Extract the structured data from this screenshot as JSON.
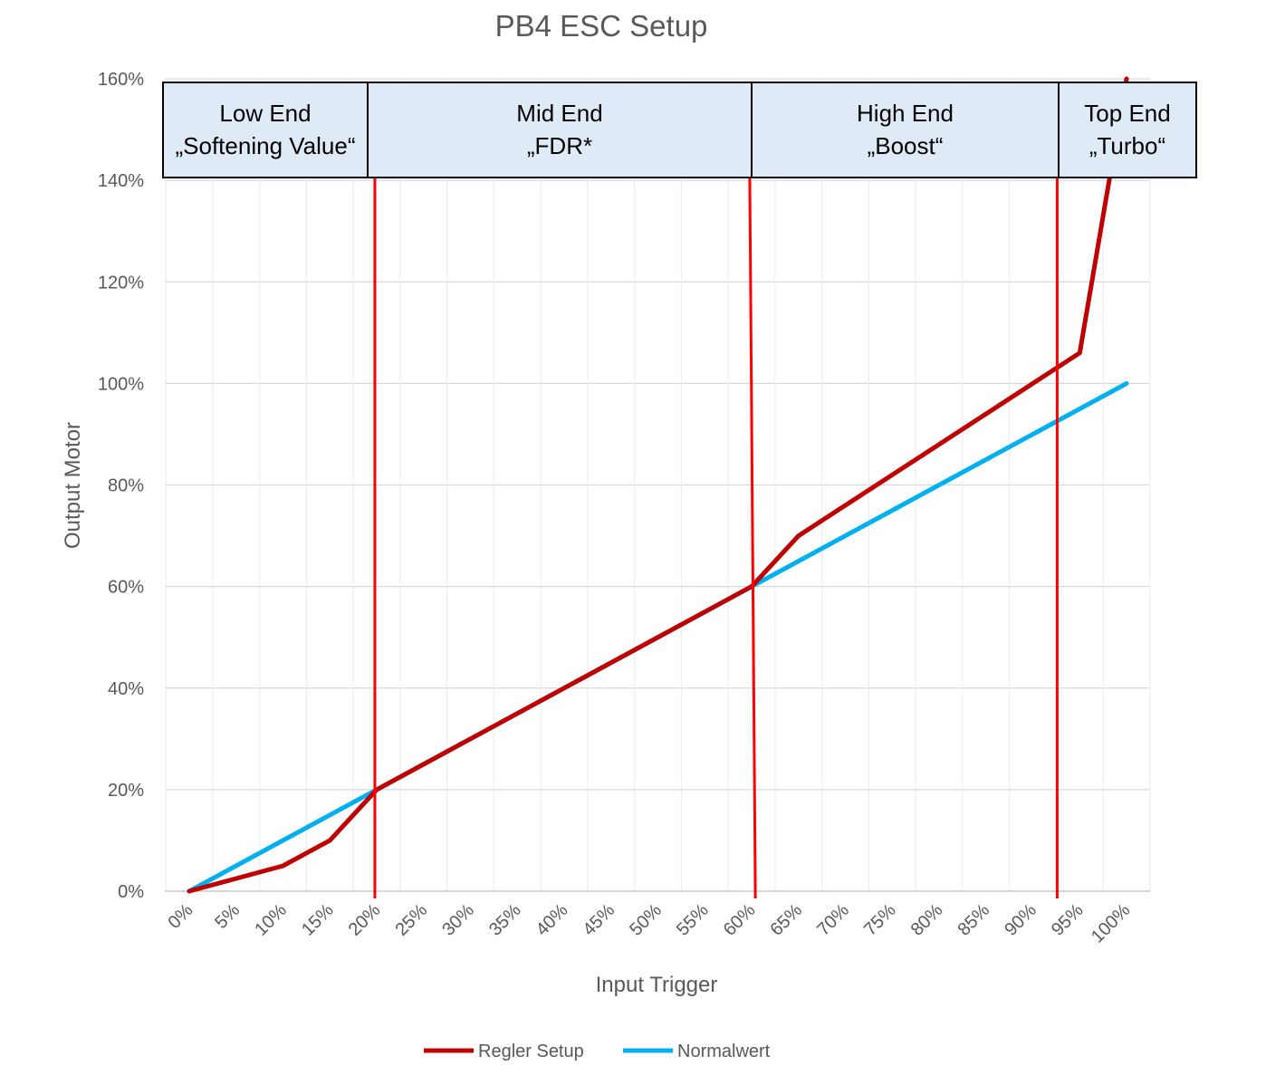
{
  "chart_data": {
    "type": "line",
    "title": "PB4 ESC Setup",
    "xlabel": "Input Trigger",
    "ylabel": "Output Motor",
    "x_categories": [
      "0%",
      "5%",
      "10%",
      "15%",
      "20%",
      "25%",
      "30%",
      "35%",
      "40%",
      "45%",
      "50%",
      "55%",
      "60%",
      "65%",
      "70%",
      "75%",
      "80%",
      "85%",
      "90%",
      "95%",
      "100%"
    ],
    "y_ticks": [
      "0%",
      "20%",
      "40%",
      "60%",
      "80%",
      "100%",
      "120%",
      "140%",
      "160%"
    ],
    "ylim": [
      0,
      160
    ],
    "grid": true,
    "legend_position": "bottom",
    "series": [
      {
        "name": "Regler Setup",
        "color": "#c00000",
        "points": [
          [
            0,
            0
          ],
          [
            5,
            2.5
          ],
          [
            10,
            5
          ],
          [
            15,
            10
          ],
          [
            20,
            20
          ],
          [
            60,
            60
          ],
          [
            65,
            70
          ],
          [
            95,
            106
          ],
          [
            100,
            160
          ]
        ]
      },
      {
        "name": "Normalwert",
        "color": "#00b0f0",
        "points": [
          [
            0,
            0
          ],
          [
            100,
            100
          ]
        ]
      }
    ],
    "divider_lines": [
      {
        "x_top": 19.8,
        "x_bottom": 19.8,
        "color": "#ff0000"
      },
      {
        "x_top": 59.8,
        "x_bottom": 60.4,
        "color": "#ff0000"
      },
      {
        "x_top": 92.6,
        "x_bottom": 92.6,
        "color": "#ff0000"
      }
    ],
    "zones": [
      {
        "line1": "Low End",
        "line2": "„Softening Value“"
      },
      {
        "line1": "Mid End",
        "line2": "„FDR*"
      },
      {
        "line1": "High End",
        "line2": "„Boost“"
      },
      {
        "line1": "Top End",
        "line2": "„Turbo“"
      }
    ],
    "zone_fill": "#deebf7"
  }
}
